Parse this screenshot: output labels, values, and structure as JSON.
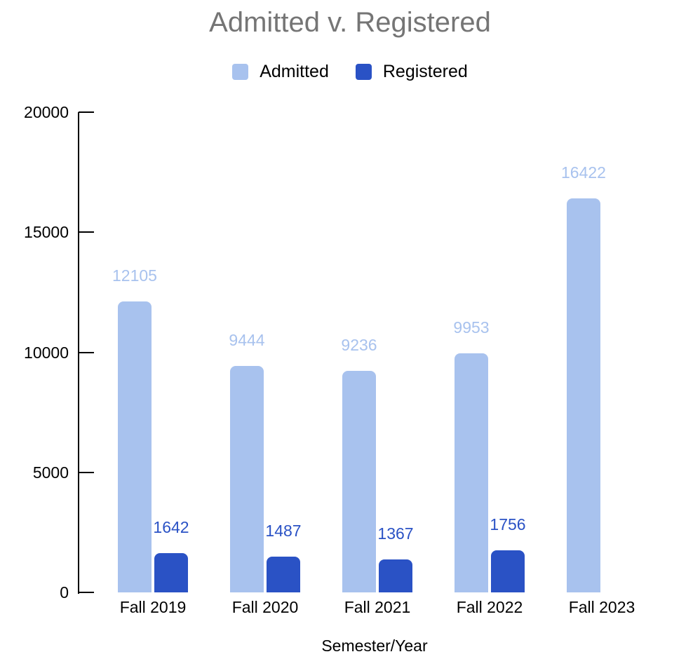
{
  "chart_data": {
    "type": "bar",
    "title": "Admitted v. Registered",
    "xlabel": "Semester/Year",
    "ylabel": "",
    "categories": [
      "Fall 2019",
      "Fall 2020",
      "Fall 2021",
      "Fall 2022",
      "Fall 2023"
    ],
    "series": [
      {
        "name": "Admitted",
        "color": "#a8c2ee",
        "values": [
          12105,
          9444,
          9236,
          9953,
          16422
        ]
      },
      {
        "name": "Registered",
        "color": "#2a52c5",
        "values": [
          1642,
          1487,
          1367,
          1756,
          null
        ]
      }
    ],
    "ylim": [
      0,
      20000
    ],
    "yticks": [
      0,
      5000,
      10000,
      15000,
      20000
    ],
    "grid": false,
    "legend_position": "top",
    "data_labels": true
  },
  "colors": {
    "title_text": "#757575",
    "axis": "#000000",
    "label_text": "#000000",
    "background": "#ffffff"
  }
}
